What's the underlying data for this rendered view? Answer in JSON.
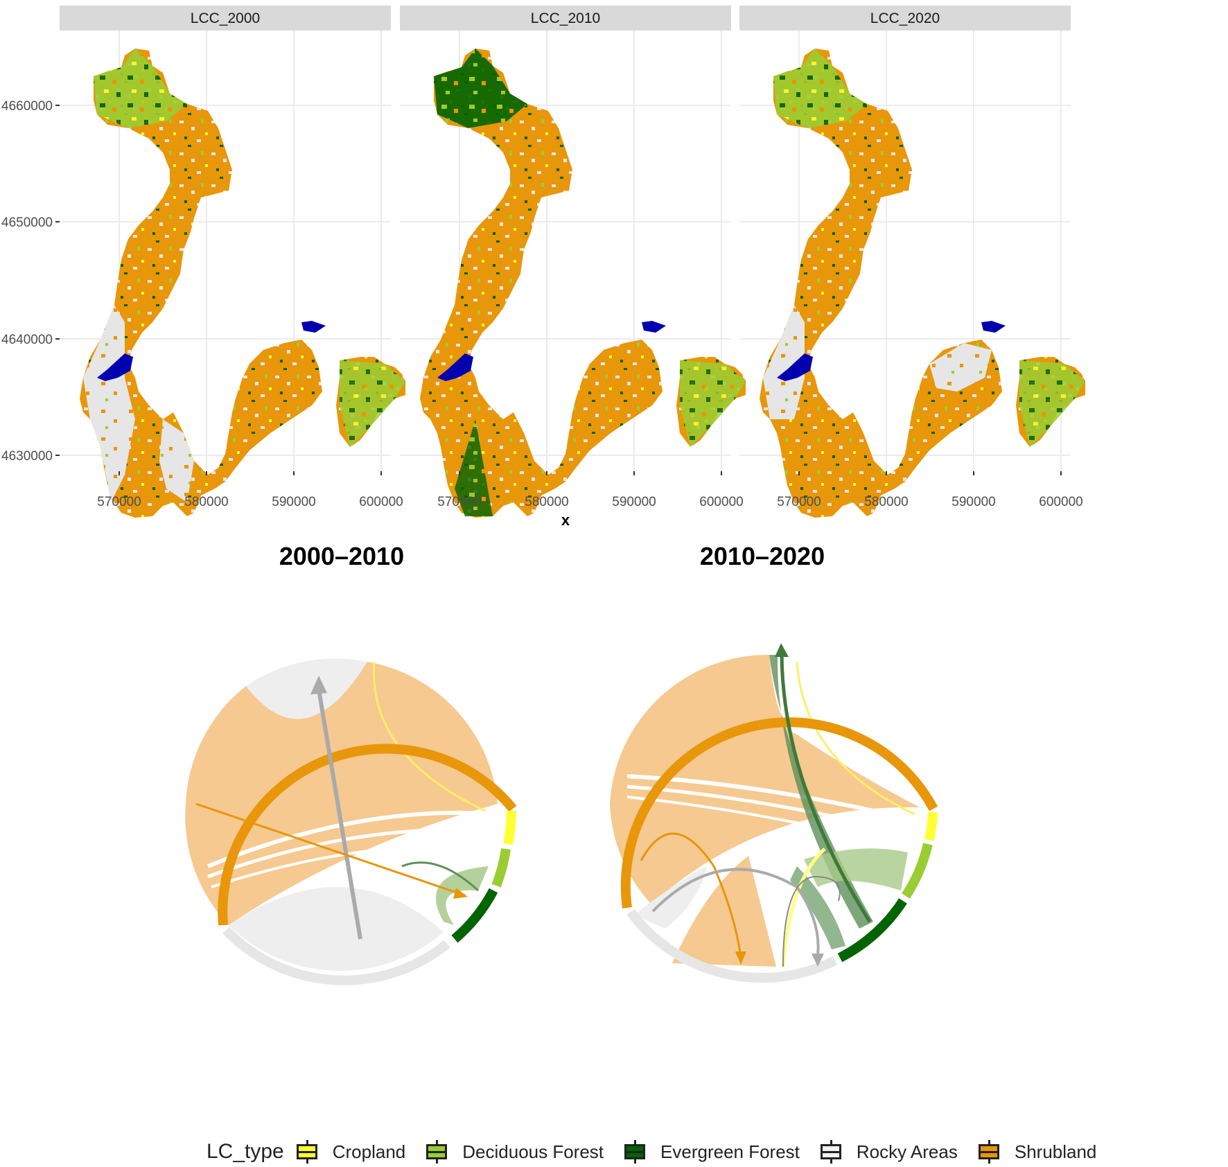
{
  "facets": [
    {
      "strip": "LCC_2000"
    },
    {
      "strip": "LCC_2010"
    },
    {
      "strip": "LCC_2020"
    }
  ],
  "axes": {
    "x_title": "x",
    "x_ticks": [
      "570000",
      "580000",
      "590000",
      "600000"
    ],
    "y_ticks": [
      "4660000",
      "4650000",
      "4640000",
      "4630000"
    ]
  },
  "chords": [
    {
      "title": "2000–2010"
    },
    {
      "title": "2010–2020"
    }
  ],
  "legend": {
    "title": "LC_type",
    "items": [
      {
        "label": "Cropland",
        "color": "#ffff33"
      },
      {
        "label": "Deciduous Forest",
        "color": "#9acd32"
      },
      {
        "label": "Evergreen Forest",
        "color": "#006400"
      },
      {
        "label": "Rocky Areas",
        "color": "#e8e8e8"
      },
      {
        "label": "Shrubland",
        "color": "#e8960a"
      }
    ]
  },
  "colors": {
    "shrubland": "#e8960a",
    "rocky": "#e6e6e6",
    "cropland": "#ffff33",
    "deciduous": "#9acd32",
    "evergreen": "#006400",
    "water": "#0000b0",
    "strip_bg": "#d9d9d9",
    "grid": "#ebebeb"
  }
}
